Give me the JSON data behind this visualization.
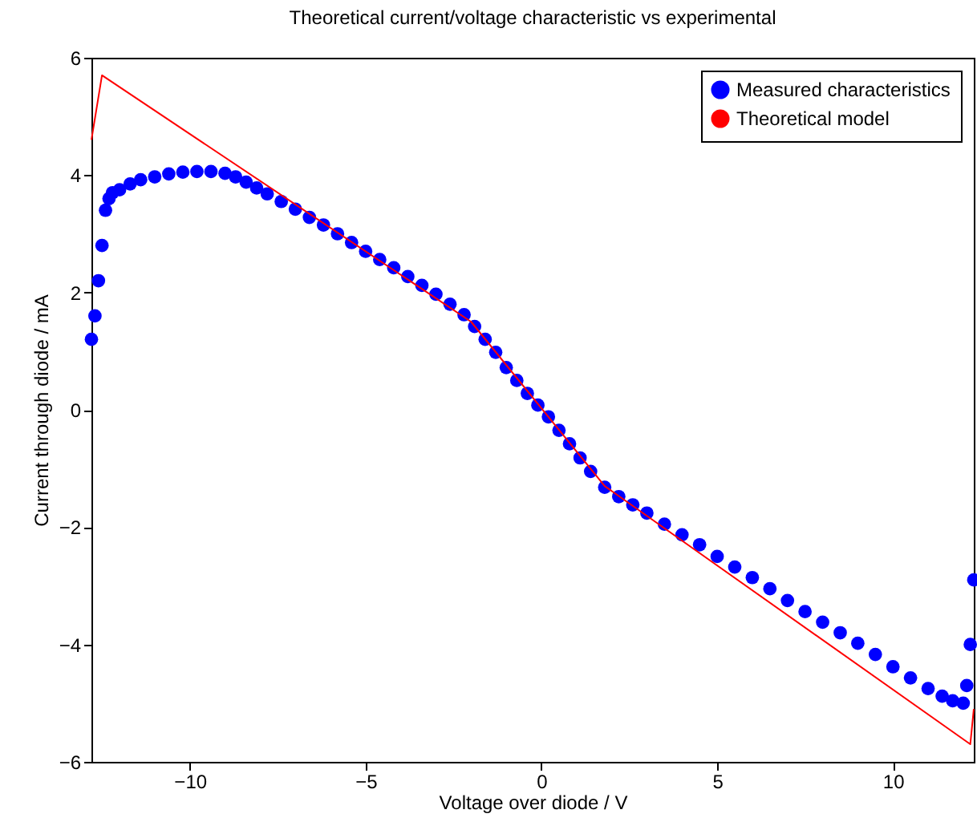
{
  "chart_data": {
    "type": "scatter",
    "title": "Theoretical current/voltage characteristic vs experimental",
    "xlabel": "Voltage over diode / V",
    "ylabel": "Current through diode / mA",
    "xlim": [
      -12.8,
      12.3
    ],
    "ylim": [
      -6,
      6
    ],
    "xticks": [
      -10,
      -5,
      0,
      5,
      10
    ],
    "yticks": [
      -6,
      -4,
      -2,
      0,
      2,
      4,
      6
    ],
    "legend": "top right",
    "grid": false,
    "series": [
      {
        "name": "Measured characteristics",
        "marker": "circle",
        "color": "#0000ff",
        "x": [
          -12.8,
          -12.7,
          -12.6,
          -12.5,
          -12.4,
          -12.3,
          -12.2,
          -12,
          -11.7,
          -11.4,
          -11,
          -10.6,
          -10.2,
          -9.8,
          -9.4,
          -9,
          -8.7,
          -8.4,
          -8.1,
          -7.8,
          -7.4,
          -7,
          -6.6,
          -6.2,
          -5.8,
          -5.4,
          -5,
          -4.6,
          -4.2,
          -3.8,
          -3.4,
          -3,
          -2.6,
          -2.2,
          -1.9,
          -1.6,
          -1.3,
          -1,
          -0.7,
          -0.4,
          -0.1,
          0.2,
          0.5,
          0.8,
          1.1,
          1.4,
          1.8,
          2.2,
          2.6,
          3,
          3.5,
          4,
          4.5,
          5,
          5.5,
          6,
          6.5,
          7,
          7.5,
          8,
          8.5,
          9,
          9.5,
          10,
          10.5,
          11,
          11.4,
          11.7,
          12,
          12.1,
          12.2,
          12.3
        ],
        "values": [
          1.2,
          1.6,
          2.2,
          2.8,
          3.4,
          3.6,
          3.7,
          3.75,
          3.85,
          3.92,
          3.97,
          4.02,
          4.05,
          4.06,
          4.06,
          4.03,
          3.97,
          3.88,
          3.78,
          3.68,
          3.55,
          3.42,
          3.28,
          3.15,
          3.0,
          2.85,
          2.7,
          2.56,
          2.42,
          2.27,
          2.12,
          1.97,
          1.8,
          1.62,
          1.42,
          1.2,
          0.98,
          0.72,
          0.5,
          0.28,
          0.08,
          -0.12,
          -0.35,
          -0.58,
          -0.82,
          -1.05,
          -1.32,
          -1.48,
          -1.62,
          -1.76,
          -1.95,
          -2.13,
          -2.3,
          -2.5,
          -2.68,
          -2.86,
          -3.05,
          -3.25,
          -3.44,
          -3.62,
          -3.8,
          -3.98,
          -4.17,
          -4.38,
          -4.57,
          -4.75,
          -4.88,
          -4.96,
          -5.0,
          -4.7,
          -4.0,
          -2.9
        ]
      },
      {
        "name": "Theoretical model",
        "type": "line",
        "marker": "none",
        "line_style": "solid",
        "color": "#ff0000",
        "x": [
          -12.8,
          -12.5,
          -2,
          1.8,
          12.2,
          12.3
        ],
        "values": [
          4.6,
          5.7,
          1.5,
          -1.3,
          -5.7,
          -5.1
        ]
      }
    ]
  }
}
